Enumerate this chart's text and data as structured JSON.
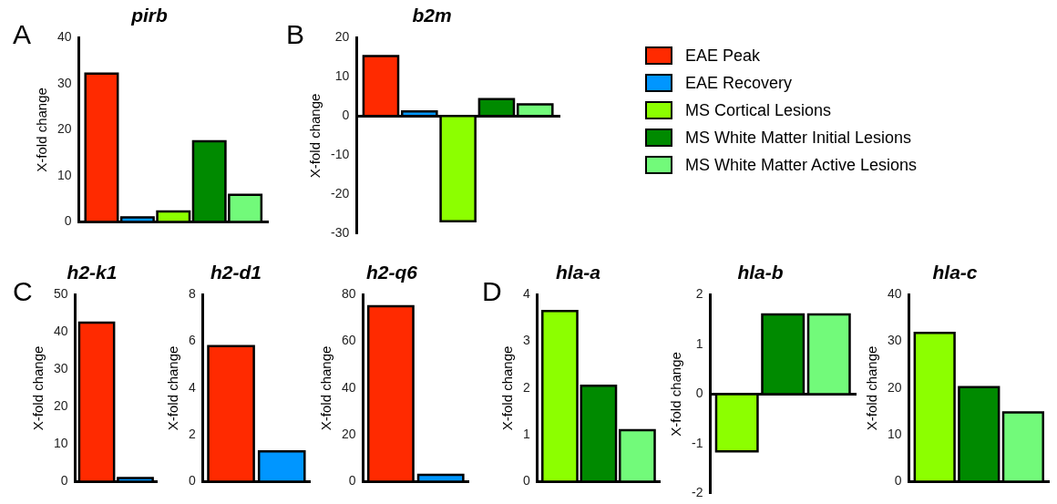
{
  "chart_data": [
    {
      "type": "bar",
      "title": "pirb",
      "ylabel": "X-fold change",
      "annotations": [
        "A"
      ],
      "categories": [
        null
      ],
      "ylim": [
        0,
        40
      ],
      "yticks": [
        0,
        10,
        20,
        30,
        40
      ],
      "series": [
        {
          "color": "#ff2a00",
          "values": [
            32.2
          ]
        },
        {
          "color": "#0096ff",
          "values": [
            1.0
          ]
        },
        {
          "color": "#8cff00",
          "values": [
            2.3
          ]
        },
        {
          "color": "#008a00",
          "values": [
            17.5
          ]
        },
        {
          "color": "#72fa7a",
          "values": [
            5.9
          ]
        }
      ]
    },
    {
      "type": "bar",
      "title": "b2m",
      "ylabel": "X-fold change",
      "annotations": [
        "B"
      ],
      "categories": [
        null
      ],
      "ylim": [
        -30,
        20
      ],
      "yticks": [
        -30,
        -20,
        -10,
        0,
        10,
        20
      ],
      "legend": "right",
      "series": [
        {
          "name": "EAE Peak",
          "color": "#ff2a00",
          "values": [
            15.3
          ]
        },
        {
          "name": "EAE Recovery",
          "color": "#0096ff",
          "values": [
            1.2
          ]
        },
        {
          "name": "MS Cortical Lesions",
          "color": "#8cff00",
          "values": [
            -26.8
          ]
        },
        {
          "name": "MS White Matter Initial Lesions",
          "color": "#008a00",
          "values": [
            4.3
          ]
        },
        {
          "name": "MS White Matter Active Lesions",
          "color": "#72fa7a",
          "values": [
            3.0
          ]
        }
      ]
    },
    {
      "type": "bar",
      "title": "h2-k1",
      "ylabel": "X-fold change",
      "annotations": [
        "C"
      ],
      "categories": [
        null
      ],
      "ylim": [
        0,
        50
      ],
      "yticks": [
        0,
        10,
        20,
        30,
        40,
        50
      ],
      "series": [
        {
          "color": "#ff2a00",
          "values": [
            42.5
          ]
        },
        {
          "color": "#0096ff",
          "values": [
            1.0
          ]
        }
      ]
    },
    {
      "type": "bar",
      "title": "h2-d1",
      "ylabel": "X-fold change",
      "categories": [
        null
      ],
      "ylim": [
        0,
        8
      ],
      "yticks": [
        0,
        2,
        4,
        6,
        8
      ],
      "series": [
        {
          "color": "#ff2a00",
          "values": [
            5.8
          ]
        },
        {
          "color": "#0096ff",
          "values": [
            1.3
          ]
        }
      ]
    },
    {
      "type": "bar",
      "title": "h2-q6",
      "ylabel": "X-fold change",
      "categories": [
        null
      ],
      "ylim": [
        0,
        80
      ],
      "yticks": [
        0,
        20,
        40,
        60,
        80
      ],
      "series": [
        {
          "color": "#ff2a00",
          "values": [
            75
          ]
        },
        {
          "color": "#0096ff",
          "values": [
            3
          ]
        }
      ]
    },
    {
      "type": "bar",
      "title": "hla-a",
      "ylabel": "X-fold change",
      "annotations": [
        "D"
      ],
      "categories": [
        null
      ],
      "ylim": [
        0,
        4
      ],
      "yticks": [
        0,
        1,
        2,
        3,
        4
      ],
      "series": [
        {
          "color": "#8cff00",
          "values": [
            3.65
          ]
        },
        {
          "color": "#008a00",
          "values": [
            2.05
          ]
        },
        {
          "color": "#72fa7a",
          "values": [
            1.1
          ]
        }
      ]
    },
    {
      "type": "bar",
      "title": "hla-b",
      "ylabel": "X-fold change",
      "categories": [
        null
      ],
      "ylim": [
        -2,
        2
      ],
      "yticks": [
        -2,
        -1,
        0,
        1,
        2
      ],
      "series": [
        {
          "color": "#8cff00",
          "values": [
            -1.15
          ]
        },
        {
          "color": "#008a00",
          "values": [
            1.6
          ]
        },
        {
          "color": "#72fa7a",
          "values": [
            1.6
          ]
        }
      ]
    },
    {
      "type": "bar",
      "title": "hla-c",
      "ylabel": "X-fold change",
      "categories": [
        null
      ],
      "ylim": [
        0,
        40
      ],
      "yticks": [
        0,
        10,
        20,
        30,
        40
      ],
      "series": [
        {
          "color": "#8cff00",
          "values": [
            31.8
          ]
        },
        {
          "color": "#008a00",
          "values": [
            20.2
          ]
        },
        {
          "color": "#72fa7a",
          "values": [
            14.8
          ]
        }
      ]
    }
  ]
}
